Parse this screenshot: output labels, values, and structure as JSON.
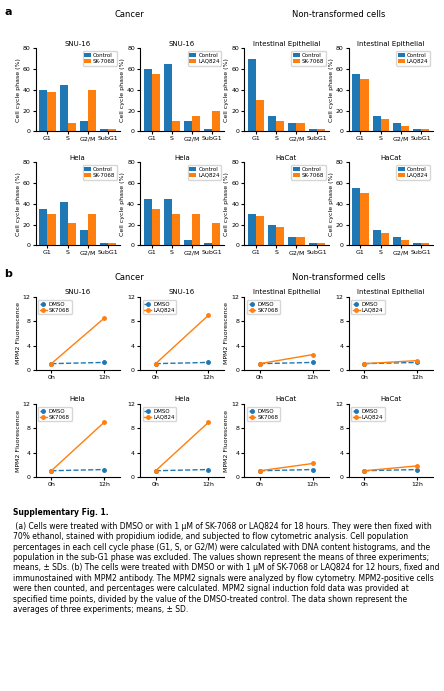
{
  "chart_data": [
    {
      "type": "bar",
      "title": "SNU-16",
      "y_label": "Cell cycle phase (%)",
      "categories": [
        "G1",
        "S",
        "G2/M",
        "SubG1"
      ],
      "series": [
        {
          "name": "Control",
          "values": [
            40,
            45,
            10,
            2
          ]
        },
        {
          "name": "SK-7068",
          "values": [
            38,
            8,
            40,
            2
          ]
        }
      ],
      "ylim": [
        0,
        80
      ],
      "yticks": [
        0,
        20,
        40,
        60,
        80
      ],
      "legend": "upper right"
    },
    {
      "type": "bar",
      "title": "SNU-16",
      "y_label": "Cell cycle phase (%)",
      "categories": [
        "G1",
        "S",
        "G2/M",
        "SubG1"
      ],
      "series": [
        {
          "name": "Control",
          "values": [
            60,
            65,
            10,
            2
          ]
        },
        {
          "name": "LAQ824",
          "values": [
            55,
            10,
            15,
            20
          ]
        }
      ],
      "ylim": [
        0,
        80
      ],
      "yticks": [
        0,
        20,
        40,
        60,
        80
      ],
      "legend": "upper right"
    },
    {
      "type": "bar",
      "title": "Intestinal Epithelial",
      "y_label": "Cell cycle phase (%)",
      "categories": [
        "G1",
        "S",
        "G2/M",
        "SubG1"
      ],
      "series": [
        {
          "name": "Control",
          "values": [
            70,
            15,
            8,
            2
          ]
        },
        {
          "name": "SK-7068",
          "values": [
            30,
            10,
            8,
            2
          ]
        }
      ],
      "ylim": [
        0,
        80
      ],
      "yticks": [
        0,
        20,
        40,
        60,
        80
      ],
      "legend": "upper right"
    },
    {
      "type": "bar",
      "title": "Intestinal Epithelial",
      "y_label": "Cell cycle phase (%)",
      "categories": [
        "G1",
        "S",
        "G2/M",
        "SubG1"
      ],
      "series": [
        {
          "name": "Control",
          "values": [
            55,
            15,
            8,
            2
          ]
        },
        {
          "name": "LAQ824",
          "values": [
            50,
            12,
            5,
            2
          ]
        }
      ],
      "ylim": [
        0,
        80
      ],
      "yticks": [
        0,
        20,
        40,
        60,
        80
      ],
      "legend": "upper right"
    },
    {
      "type": "bar",
      "title": "Hela",
      "y_label": "Cell cycle phase (%)",
      "categories": [
        "G1",
        "S",
        "G2/M",
        "SubG1"
      ],
      "series": [
        {
          "name": "Control",
          "values": [
            35,
            42,
            15,
            2
          ]
        },
        {
          "name": "SK-7068",
          "values": [
            30,
            22,
            30,
            2
          ]
        }
      ],
      "ylim": [
        0,
        80
      ],
      "yticks": [
        0,
        20,
        40,
        60,
        80
      ],
      "legend": "upper right"
    },
    {
      "type": "bar",
      "title": "Hela",
      "y_label": "Cell cycle phase (%)",
      "categories": [
        "G1",
        "S",
        "G2/M",
        "SubG1"
      ],
      "series": [
        {
          "name": "Control",
          "values": [
            45,
            45,
            5,
            2
          ]
        },
        {
          "name": "LAQ824",
          "values": [
            35,
            30,
            30,
            22
          ]
        }
      ],
      "ylim": [
        0,
        80
      ],
      "yticks": [
        0,
        20,
        40,
        60,
        80
      ],
      "legend": "upper right"
    },
    {
      "type": "bar",
      "title": "HaCat",
      "y_label": "Cell cycle phase (%)",
      "categories": [
        "G1",
        "S",
        "G2/M",
        "SubG1"
      ],
      "series": [
        {
          "name": "Control",
          "values": [
            30,
            20,
            8,
            2
          ]
        },
        {
          "name": "SK-7068",
          "values": [
            28,
            18,
            8,
            2
          ]
        }
      ],
      "ylim": [
        0,
        80
      ],
      "yticks": [
        0,
        20,
        40,
        60,
        80
      ],
      "legend": "upper right"
    },
    {
      "type": "bar",
      "title": "HaCat",
      "y_label": "Cell cycle phase (%)",
      "categories": [
        "G1",
        "S",
        "G2/M",
        "SubG1"
      ],
      "series": [
        {
          "name": "Control",
          "values": [
            55,
            15,
            8,
            2
          ]
        },
        {
          "name": "LAQ824",
          "values": [
            50,
            12,
            5,
            2
          ]
        }
      ],
      "ylim": [
        0,
        80
      ],
      "yticks": [
        0,
        20,
        40,
        60,
        80
      ],
      "legend": "upper right"
    },
    {
      "type": "line",
      "title": "SNU-16",
      "y_label": "MPM2 Fluorescence",
      "categories": [
        "0h",
        "12h"
      ],
      "series": [
        {
          "name": "DMSO",
          "values": [
            1,
            1.2
          ],
          "line_style": "dashed",
          "marker": "o"
        },
        {
          "name": "SK7068",
          "values": [
            1,
            8.5
          ],
          "line_style": "solid",
          "marker": "o"
        }
      ],
      "ylim": [
        0,
        12
      ],
      "yticks": [
        0,
        4,
        8,
        12
      ],
      "legend": "upper left"
    },
    {
      "type": "line",
      "title": "SNU-16",
      "categories": [
        "0h",
        "12h"
      ],
      "series": [
        {
          "name": "DMSO",
          "values": [
            1,
            1.2
          ],
          "line_style": "dashed",
          "marker": "o"
        },
        {
          "name": "LAQ824",
          "values": [
            1,
            9
          ],
          "line_style": "solid",
          "marker": "o"
        }
      ],
      "ylim": [
        0,
        12
      ],
      "yticks": [
        0,
        4,
        8,
        12
      ],
      "legend": "upper left"
    },
    {
      "type": "line",
      "title": "Intestinal Epithelial",
      "y_label": "MPM2 Fluorescence",
      "categories": [
        "0h",
        "12h"
      ],
      "series": [
        {
          "name": "DMSO",
          "values": [
            1,
            1.2
          ],
          "line_style": "dashed",
          "marker": "o"
        },
        {
          "name": "SK7068",
          "values": [
            1,
            2.5
          ],
          "line_style": "solid",
          "marker": "o"
        }
      ],
      "ylim": [
        0,
        12
      ],
      "yticks": [
        0,
        4,
        8,
        12
      ],
      "legend": "upper left"
    },
    {
      "type": "line",
      "title": "Intestinal Epithelial",
      "categories": [
        "0h",
        "12h"
      ],
      "series": [
        {
          "name": "DMSO",
          "values": [
            1,
            1.2
          ],
          "line_style": "dashed",
          "marker": "o"
        },
        {
          "name": "LAQ824",
          "values": [
            1,
            1.5
          ],
          "line_style": "solid",
          "marker": "o"
        }
      ],
      "ylim": [
        0,
        12
      ],
      "yticks": [
        0,
        4,
        8,
        12
      ],
      "legend": "upper left"
    },
    {
      "type": "line",
      "title": "Hela",
      "y_label": "MPM2 Fluorescence",
      "categories": [
        "0h",
        "12h"
      ],
      "series": [
        {
          "name": "DMSO",
          "values": [
            1,
            1.2
          ],
          "line_style": "dashed",
          "marker": "o"
        },
        {
          "name": "SK7068",
          "values": [
            1,
            9
          ],
          "line_style": "solid",
          "marker": "o"
        }
      ],
      "ylim": [
        0,
        12
      ],
      "yticks": [
        0,
        4,
        8,
        12
      ],
      "legend": "upper left"
    },
    {
      "type": "line",
      "title": "Hela",
      "categories": [
        "0h",
        "12h"
      ],
      "series": [
        {
          "name": "DMSO",
          "values": [
            1,
            1.2
          ],
          "line_style": "dashed",
          "marker": "o"
        },
        {
          "name": "LAQ824",
          "values": [
            1,
            9
          ],
          "line_style": "solid",
          "marker": "o"
        }
      ],
      "ylim": [
        0,
        12
      ],
      "yticks": [
        0,
        4,
        8,
        12
      ],
      "legend": "upper left"
    },
    {
      "type": "line",
      "title": "HaCat",
      "y_label": "MPM2 Fluorescence",
      "categories": [
        "0h",
        "12h"
      ],
      "series": [
        {
          "name": "DMSO",
          "values": [
            1,
            1.2
          ],
          "line_style": "dashed",
          "marker": "o"
        },
        {
          "name": "SK7068",
          "values": [
            1,
            2.2
          ],
          "line_style": "solid",
          "marker": "o"
        }
      ],
      "ylim": [
        0,
        12
      ],
      "yticks": [
        0,
        4,
        8,
        12
      ],
      "legend": "upper left"
    },
    {
      "type": "line",
      "title": "HaCat",
      "categories": [
        "0h",
        "12h"
      ],
      "series": [
        {
          "name": "DMSO",
          "values": [
            1,
            1.2
          ],
          "line_style": "dashed",
          "marker": "o"
        },
        {
          "name": "LAQ824",
          "values": [
            1,
            1.8
          ],
          "line_style": "solid",
          "marker": "o"
        }
      ],
      "ylim": [
        0,
        12
      ],
      "yticks": [
        0,
        4,
        8,
        12
      ],
      "legend": "upper left"
    }
  ],
  "annotations": [
    "a",
    "Cancer",
    "Non-transformed cells",
    "b",
    "Cancer",
    "Non-transformed cells",
    "Supplementary Fig. 1.",
    " (a) Cells were treated with DMSO or with 1 μM of SK-7068 or LAQ824 for 18 hours. They were then fixed with 70% ethanol, stained with propidium iodide, and subjected to flow cytometric analysis. Cell population percentages in each cell cycle phase (G1, S, or G2/M) were calculated with DNA content histograms, and the population in the sub-G1 phase was excluded. The values shown represent the means of three experiments; means, ± SDs. (b) The cells were treated with DMSO or with 1 μM of SK-7068 or LAQ824 for 12 hours, fixed and immunostained with MPM2 antibody. The MPM2 signals were analyzed by flow cytometry. MPM2-positive cells were then counted, and percentages were calculated. MPM2 signal induction fold data was provided at specified time points, divided by the value of the DMSO-treated control. The data shown represent the averages of three experiments; means, ± SD."
  ]
}
